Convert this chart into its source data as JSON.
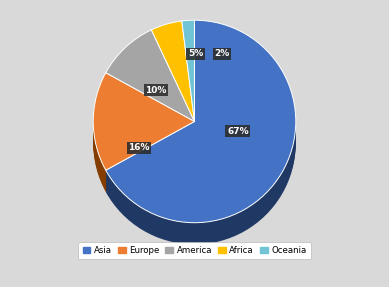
{
  "labels": [
    "Asia",
    "Europe",
    "America",
    "Africa",
    "Oceania"
  ],
  "values": [
    67,
    16,
    10,
    5,
    2
  ],
  "colors": [
    "#4472c4",
    "#ed7d31",
    "#a5a5a5",
    "#ffc000",
    "#70c4d4"
  ],
  "depth_colors": [
    "#1f3864",
    "#843c00",
    "#595959",
    "#7f6000",
    "#1f6678"
  ],
  "percentages": [
    "67%",
    "16%",
    "10%",
    "5%",
    "2%"
  ],
  "bg_color": "#d9d9d9",
  "legend_labels": [
    "Asia",
    "Europe",
    "America",
    "Africa",
    "Oceania"
  ]
}
